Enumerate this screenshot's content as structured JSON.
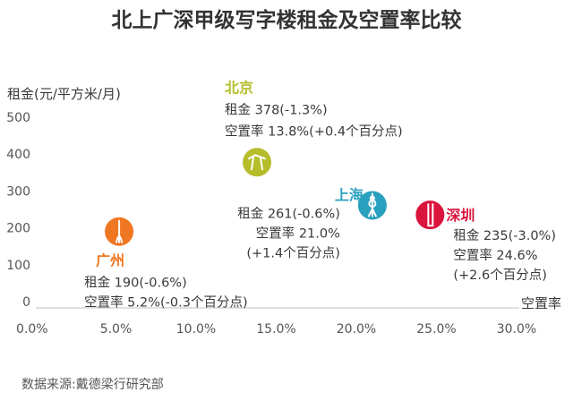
{
  "chart_data": {
    "type": "scatter",
    "title": "北上广深甲级写字楼租金及空置率比较",
    "ylabel": "租金(元/平方米/月)",
    "xlabel": "空置率",
    "xlim": [
      0,
      30
    ],
    "ylim": [
      0,
      500
    ],
    "xticks": [
      0,
      5,
      10,
      15,
      20,
      25,
      30
    ],
    "xtick_labels": [
      "0.0%",
      "5.0%",
      "10.0%",
      "15.0%",
      "20.0%",
      "25.0%",
      "30.0%"
    ],
    "yticks": [
      0,
      100,
      200,
      300,
      400,
      500
    ],
    "ytick_labels": [
      "0",
      "100",
      "200",
      "300",
      "400",
      "500"
    ],
    "points": [
      {
        "city": "北京",
        "x": 13.8,
        "y": 378,
        "color": "#b5bd2b",
        "icon": "beijing-landmark-icon",
        "lines": [
          "租金 378(-1.3%)",
          "空置率 13.8%(+0.4个百分点)"
        ]
      },
      {
        "city": "上海",
        "x": 21.0,
        "y": 261,
        "color": "#2aa0bf",
        "icon": "shanghai-tower-icon",
        "lines": [
          "租金 261(-0.6%)",
          "空置率 21.0%",
          "(+1.4个百分点)"
        ]
      },
      {
        "city": "广州",
        "x": 5.2,
        "y": 190,
        "color": "#f07722",
        "icon": "guangzhou-tower-icon",
        "lines": [
          "租金 190(-0.6%)",
          "空置率 5.2%(-0.3个百分点)"
        ]
      },
      {
        "city": "深圳",
        "x": 24.6,
        "y": 235,
        "color": "#d9143d",
        "icon": "shenzhen-building-icon",
        "lines": [
          "租金 235(-3.0%)",
          "空置率 24.6%",
          "(+2.6个百分点)"
        ]
      }
    ],
    "source": "数据来源:戴德梁行研究部"
  }
}
